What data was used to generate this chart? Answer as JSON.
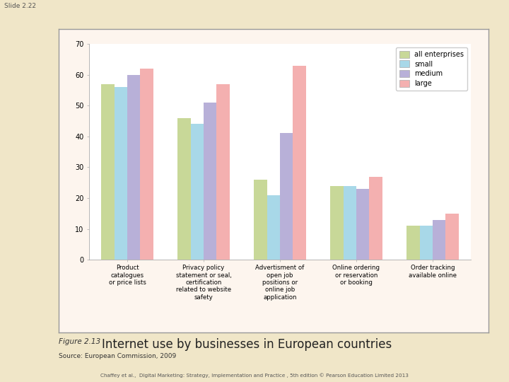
{
  "categories": [
    "Product\ncatalogues\nor price lists",
    "Privacy policy\nstatement or seal,\ncertification\nrelated to website\nsafety",
    "Advertisment of\nopen job\npositions or\nonline job\napplication",
    "Online ordering\nor reservation\nor booking",
    "Order tracking\navailable online"
  ],
  "series": {
    "all enterprises": [
      57,
      46,
      26,
      24,
      11
    ],
    "small": [
      56,
      44,
      21,
      24,
      11
    ],
    "medium": [
      60,
      51,
      41,
      23,
      13
    ],
    "large": [
      62,
      57,
      63,
      27,
      15
    ]
  },
  "colors": {
    "all enterprises": "#c8d898",
    "small": "#a8d8e8",
    "medium": "#b8b0d8",
    "large": "#f4b0b0"
  },
  "ylim": [
    0,
    70
  ],
  "yticks": [
    0,
    10,
    20,
    30,
    40,
    50,
    60,
    70
  ],
  "background_outer": "#f0e6c8",
  "background_box": "#fdf5ee",
  "background_chart": "#ffffff",
  "figure_caption_prefix": "Figure 2.13",
  "figure_caption_text": "Internet use by businesses in European countries",
  "source_text": "Source: European Commission, 2009",
  "footer_text": "Chaffey et al.,  Digital Marketing: Strategy, Implementation and Practice , 5th edition © Pearson Education Limited 2013"
}
